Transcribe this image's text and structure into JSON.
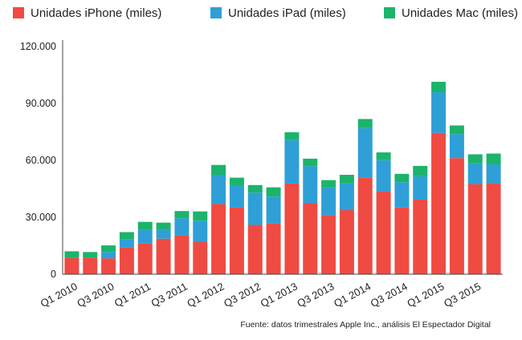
{
  "chart_data": {
    "type": "bar",
    "stacked": true,
    "categories": [
      "Q1 2010",
      "Q2 2010",
      "Q3 2010",
      "Q4 2010",
      "Q1 2011",
      "Q2 2011",
      "Q3 2011",
      "Q4 2011",
      "Q1 2012",
      "Q2 2012",
      "Q3 2012",
      "Q4 2012",
      "Q1 2013",
      "Q2 2013",
      "Q3 2013",
      "Q4 2013",
      "Q1 2014",
      "Q2 2014",
      "Q3 2014",
      "Q4 2014",
      "Q1 2015",
      "Q2 2015",
      "Q3 2015",
      "Q4 2015"
    ],
    "x_tick_labels": [
      "Q1 2010",
      "Q3 2010",
      "Q1 2011",
      "Q3 2011",
      "Q1 2012",
      "Q3 2012",
      "Q1 2013",
      "Q3 2013",
      "Q1 2014",
      "Q3 2014",
      "Q1 2015",
      "Q3 2015"
    ],
    "series": [
      {
        "name": "Unidades iPhone (miles)",
        "color": "#ef4b43",
        "values": [
          8700,
          8800,
          8400,
          14100,
          16200,
          18700,
          20300,
          17100,
          37000,
          35100,
          26000,
          26900,
          47800,
          37400,
          31200,
          33800,
          51000,
          43700,
          35200,
          39300,
          74500,
          61200,
          47500,
          48000
        ]
      },
      {
        "name": "Unidades iPad (miles)",
        "color": "#2f9fd8",
        "values": [
          0,
          0,
          3300,
          4200,
          7300,
          4700,
          9200,
          11100,
          15400,
          11800,
          17000,
          14000,
          22900,
          19500,
          14600,
          14100,
          26000,
          16400,
          13300,
          12300,
          21400,
          12600,
          10900,
          9900
        ]
      },
      {
        "name": "Unidades Mac (miles)",
        "color": "#1bb46a",
        "values": [
          3400,
          2900,
          3500,
          3900,
          4100,
          3800,
          3800,
          4900,
          5200,
          4000,
          4000,
          4900,
          4100,
          4000,
          3800,
          4500,
          4800,
          4100,
          4400,
          5500,
          5500,
          4600,
          4800,
          5700
        ]
      }
    ],
    "y_tick_labels": [
      "0",
      "30.000",
      "60.000",
      "90.000",
      "120.000"
    ],
    "ylim": [
      0,
      120000
    ],
    "y_gridlines": false,
    "legend_position": "top",
    "footnote": "Fuente: datos trimestrales Apple Inc., análisis El Espectador Digital"
  }
}
